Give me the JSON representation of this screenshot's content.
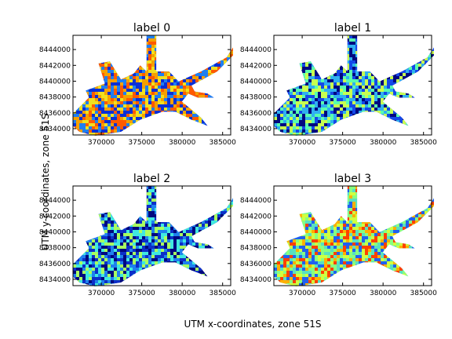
{
  "chart_data": {
    "type": "heatmap",
    "xlabel": "UTM x-coordinates, zone 51S",
    "ylabel": "UTM y-coordinates, zone 51S",
    "xlim": [
      366500,
      386000
    ],
    "ylim": [
      8433200,
      8445800
    ],
    "xticks": [
      370000,
      375000,
      380000,
      385000
    ],
    "yticks": [
      8434000,
      8436000,
      8438000,
      8440000,
      8442000,
      8444000
    ],
    "colormap": "jet",
    "panels": [
      {
        "title": "label 0",
        "dominant_colors": [
          "#0a2fd6",
          "#1f7ff0",
          "#f5a000",
          "#ff5a00",
          "#f0e020"
        ]
      },
      {
        "title": "label 1",
        "dominant_colors": [
          "#00087f",
          "#1448e8",
          "#2fb0f0",
          "#58ffb0",
          "#c8ff50"
        ]
      },
      {
        "title": "label 2",
        "dominant_colors": [
          "#00087f",
          "#0c2fc8",
          "#1e80ee",
          "#40e8e0",
          "#a8ff60"
        ]
      },
      {
        "title": "label 3",
        "dominant_colors": [
          "#58e0c0",
          "#88ff80",
          "#d0ff40",
          "#ffb000",
          "#ff4000",
          "#2060f0"
        ]
      }
    ]
  }
}
